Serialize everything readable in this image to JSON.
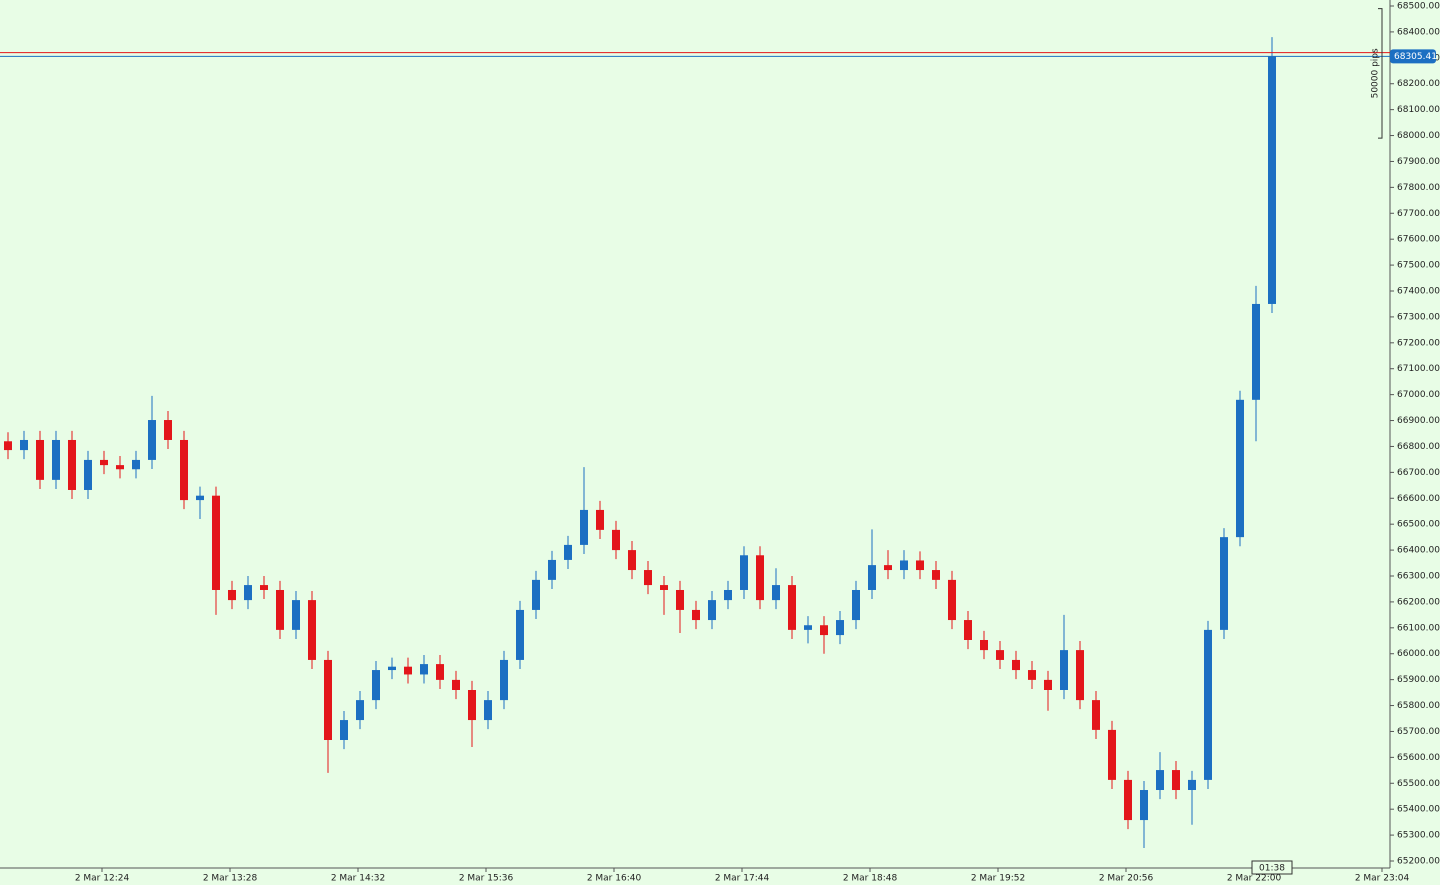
{
  "chart_data": {
    "type": "candlestick",
    "up_color": "#1c6fc2",
    "down_color": "#e3161b",
    "background": "#e8fde6",
    "x": [
      697,
      705,
      713,
      721,
      729,
      737,
      745,
      753,
      761,
      769,
      777,
      785,
      793,
      801,
      809,
      817,
      825,
      833,
      841,
      849,
      857,
      865,
      873,
      881,
      889,
      897,
      905,
      913,
      921,
      929,
      937,
      945,
      953,
      961,
      969,
      977,
      985,
      993,
      1001,
      1009,
      1017,
      1025,
      1033,
      1041,
      1049,
      1057,
      1065,
      1073,
      1081,
      1089,
      1097,
      1105,
      1113,
      1121,
      1129,
      1137,
      1145,
      1153,
      1161,
      1169,
      1177,
      1185,
      1193,
      1201,
      1209,
      1217,
      1225,
      1233,
      1241,
      1249,
      1257,
      1265,
      1273,
      1281,
      1289,
      1297,
      1305,
      1313,
      1321,
      1329
    ],
    "open": [
      66820,
      66786,
      66825,
      66671,
      66825,
      66632,
      66748,
      66728,
      66712,
      66748,
      66902,
      66825,
      66593,
      66610,
      66246,
      66207,
      66265,
      66246,
      66092,
      66207,
      65976,
      65667,
      65744,
      65821,
      65937,
      65950,
      65920,
      65960,
      65899,
      65860,
      65744,
      65821,
      65976,
      66169,
      66285,
      66362,
      66420,
      66555,
      66478,
      66400,
      66323,
      66265,
      66246,
      66169,
      66130,
      66207,
      66246,
      66380,
      66207,
      66265,
      66092,
      66110,
      66072,
      66130,
      66246,
      66342,
      66323,
      66360,
      66323,
      66285,
      66130,
      66053,
      66014,
      65976,
      65937,
      65899,
      65860,
      66014,
      65821,
      65706,
      65513,
      65358,
      65474,
      65551,
      65474,
      65513,
      66092,
      66450,
      66980,
      67350
    ],
    "high": [
      66855,
      66860,
      66860,
      66860,
      66860,
      66783,
      66783,
      66763,
      66783,
      66995,
      66937,
      66860,
      66645,
      66645,
      66281,
      66300,
      66300,
      66281,
      66242,
      66242,
      66011,
      65779,
      65856,
      65972,
      65985,
      65985,
      65995,
      65995,
      65934,
      65895,
      65856,
      66011,
      66204,
      66320,
      66397,
      66455,
      66720,
      66590,
      66513,
      66435,
      66358,
      66300,
      66281,
      66204,
      66242,
      66281,
      66415,
      66415,
      66330,
      66300,
      66145,
      66145,
      66165,
      66281,
      66480,
      66400,
      66400,
      66395,
      66358,
      66320,
      66165,
      66088,
      66049,
      66011,
      65972,
      65934,
      66150,
      66049,
      65856,
      65741,
      65548,
      65509,
      65620,
      65586,
      65548,
      66127,
      66485,
      67015,
      67420,
      68380
    ],
    "low": [
      66751,
      66751,
      66636,
      66636,
      66597,
      66597,
      66693,
      66677,
      66677,
      66713,
      66790,
      66558,
      66520,
      66150,
      66172,
      66172,
      66211,
      66057,
      66057,
      65941,
      65540,
      65632,
      65709,
      65786,
      65902,
      65885,
      65885,
      65864,
      65825,
      65640,
      65709,
      65786,
      65941,
      66134,
      66250,
      66327,
      66385,
      66443,
      66365,
      66288,
      66230,
      66150,
      66080,
      66095,
      66095,
      66172,
      66211,
      66172,
      66172,
      66057,
      66040,
      66000,
      66037,
      66095,
      66211,
      66288,
      66288,
      66288,
      66250,
      66095,
      66018,
      65979,
      65941,
      65902,
      65864,
      65780,
      65825,
      65786,
      65671,
      65478,
      65323,
      65250,
      65439,
      65439,
      65340,
      65478,
      66057,
      66415,
      66820,
      67315
    ],
    "close": [
      66786,
      66825,
      66671,
      66825,
      66632,
      66748,
      66728,
      66712,
      66748,
      66902,
      66825,
      66593,
      66610,
      66246,
      66207,
      66265,
      66246,
      66092,
      66207,
      65976,
      65667,
      65744,
      65821,
      65937,
      65950,
      65920,
      65960,
      65899,
      65860,
      65744,
      65821,
      65976,
      66169,
      66285,
      66362,
      66420,
      66555,
      66478,
      66400,
      66323,
      66265,
      66246,
      66169,
      66130,
      66207,
      66246,
      66380,
      66207,
      66265,
      66092,
      66110,
      66072,
      66130,
      66246,
      66342,
      66323,
      66360,
      66323,
      66285,
      66130,
      66053,
      66014,
      65976,
      65937,
      65899,
      65860,
      66014,
      65821,
      65706,
      65513,
      65358,
      65474,
      65551,
      65474,
      65513,
      66092,
      66450,
      66980,
      67350,
      68305
    ],
    "xlim": [
      693,
      1388
    ],
    "ylim": [
      65200,
      68500
    ],
    "xticks": [
      {
        "value": 744,
        "label": "2 Mar 12:24"
      },
      {
        "value": 808,
        "label": "2 Mar 13:28"
      },
      {
        "value": 872,
        "label": "2 Mar 14:32"
      },
      {
        "value": 936,
        "label": "2 Mar 15:36"
      },
      {
        "value": 1000,
        "label": "2 Mar 16:40"
      },
      {
        "value": 1064,
        "label": "2 Mar 17:44"
      },
      {
        "value": 1128,
        "label": "2 Mar 18:48"
      },
      {
        "value": 1192,
        "label": "2 Mar 19:52"
      },
      {
        "value": 1256,
        "label": "2 Mar 20:56"
      },
      {
        "value": 1320,
        "label": "2 Mar 22:00"
      },
      {
        "value": 1384,
        "label": "2 Mar 23:04"
      }
    ],
    "yticks": [
      {
        "value": 65200,
        "label": "65200.00"
      },
      {
        "value": 65300,
        "label": "65300.00"
      },
      {
        "value": 65400,
        "label": "65400.00"
      },
      {
        "value": 65500,
        "label": "65500.00"
      },
      {
        "value": 65600,
        "label": "65600.00"
      },
      {
        "value": 65700,
        "label": "65700.00"
      },
      {
        "value": 65800,
        "label": "65800.00"
      },
      {
        "value": 65900,
        "label": "65900.00"
      },
      {
        "value": 66000,
        "label": "66000.00"
      },
      {
        "value": 66100,
        "label": "66100.00"
      },
      {
        "value": 66200,
        "label": "66200.00"
      },
      {
        "value": 66300,
        "label": "66300.00"
      },
      {
        "value": 66400,
        "label": "66400.00"
      },
      {
        "value": 66500,
        "label": "66500.00"
      },
      {
        "value": 66600,
        "label": "66600.00"
      },
      {
        "value": 66700,
        "label": "66700.00"
      },
      {
        "value": 66800,
        "label": "66800.00"
      },
      {
        "value": 66900,
        "label": "66900.00"
      },
      {
        "value": 67000,
        "label": "67000.00"
      },
      {
        "value": 67100,
        "label": "67100.00"
      },
      {
        "value": 67200,
        "label": "67200.00"
      },
      {
        "value": 67300,
        "label": "67300.00"
      },
      {
        "value": 67400,
        "label": "67400.00"
      },
      {
        "value": 67500,
        "label": "67500.00"
      },
      {
        "value": 67600,
        "label": "67600.00"
      },
      {
        "value": 67700,
        "label": "67700.00"
      },
      {
        "value": 67800,
        "label": "67800.00"
      },
      {
        "value": 67900,
        "label": "67900.00"
      },
      {
        "value": 68000,
        "label": "68000.00"
      },
      {
        "value": 68100,
        "label": "68100.00"
      },
      {
        "value": 68200,
        "label": "68200.00"
      },
      {
        "value": 68300,
        "label": "68300.00"
      },
      {
        "value": 68400,
        "label": "68400.00"
      },
      {
        "value": 68500,
        "label": "68500.00"
      }
    ],
    "ask_line": {
      "value": 68320,
      "color": "#e3161b"
    },
    "bid_line": {
      "value": 68305.41,
      "label": "68305.41",
      "color": "#1c6fc2"
    },
    "ruler": {
      "label": "50000 pips",
      "from": 68490,
      "to": 67990
    },
    "timer": "01:38"
  }
}
